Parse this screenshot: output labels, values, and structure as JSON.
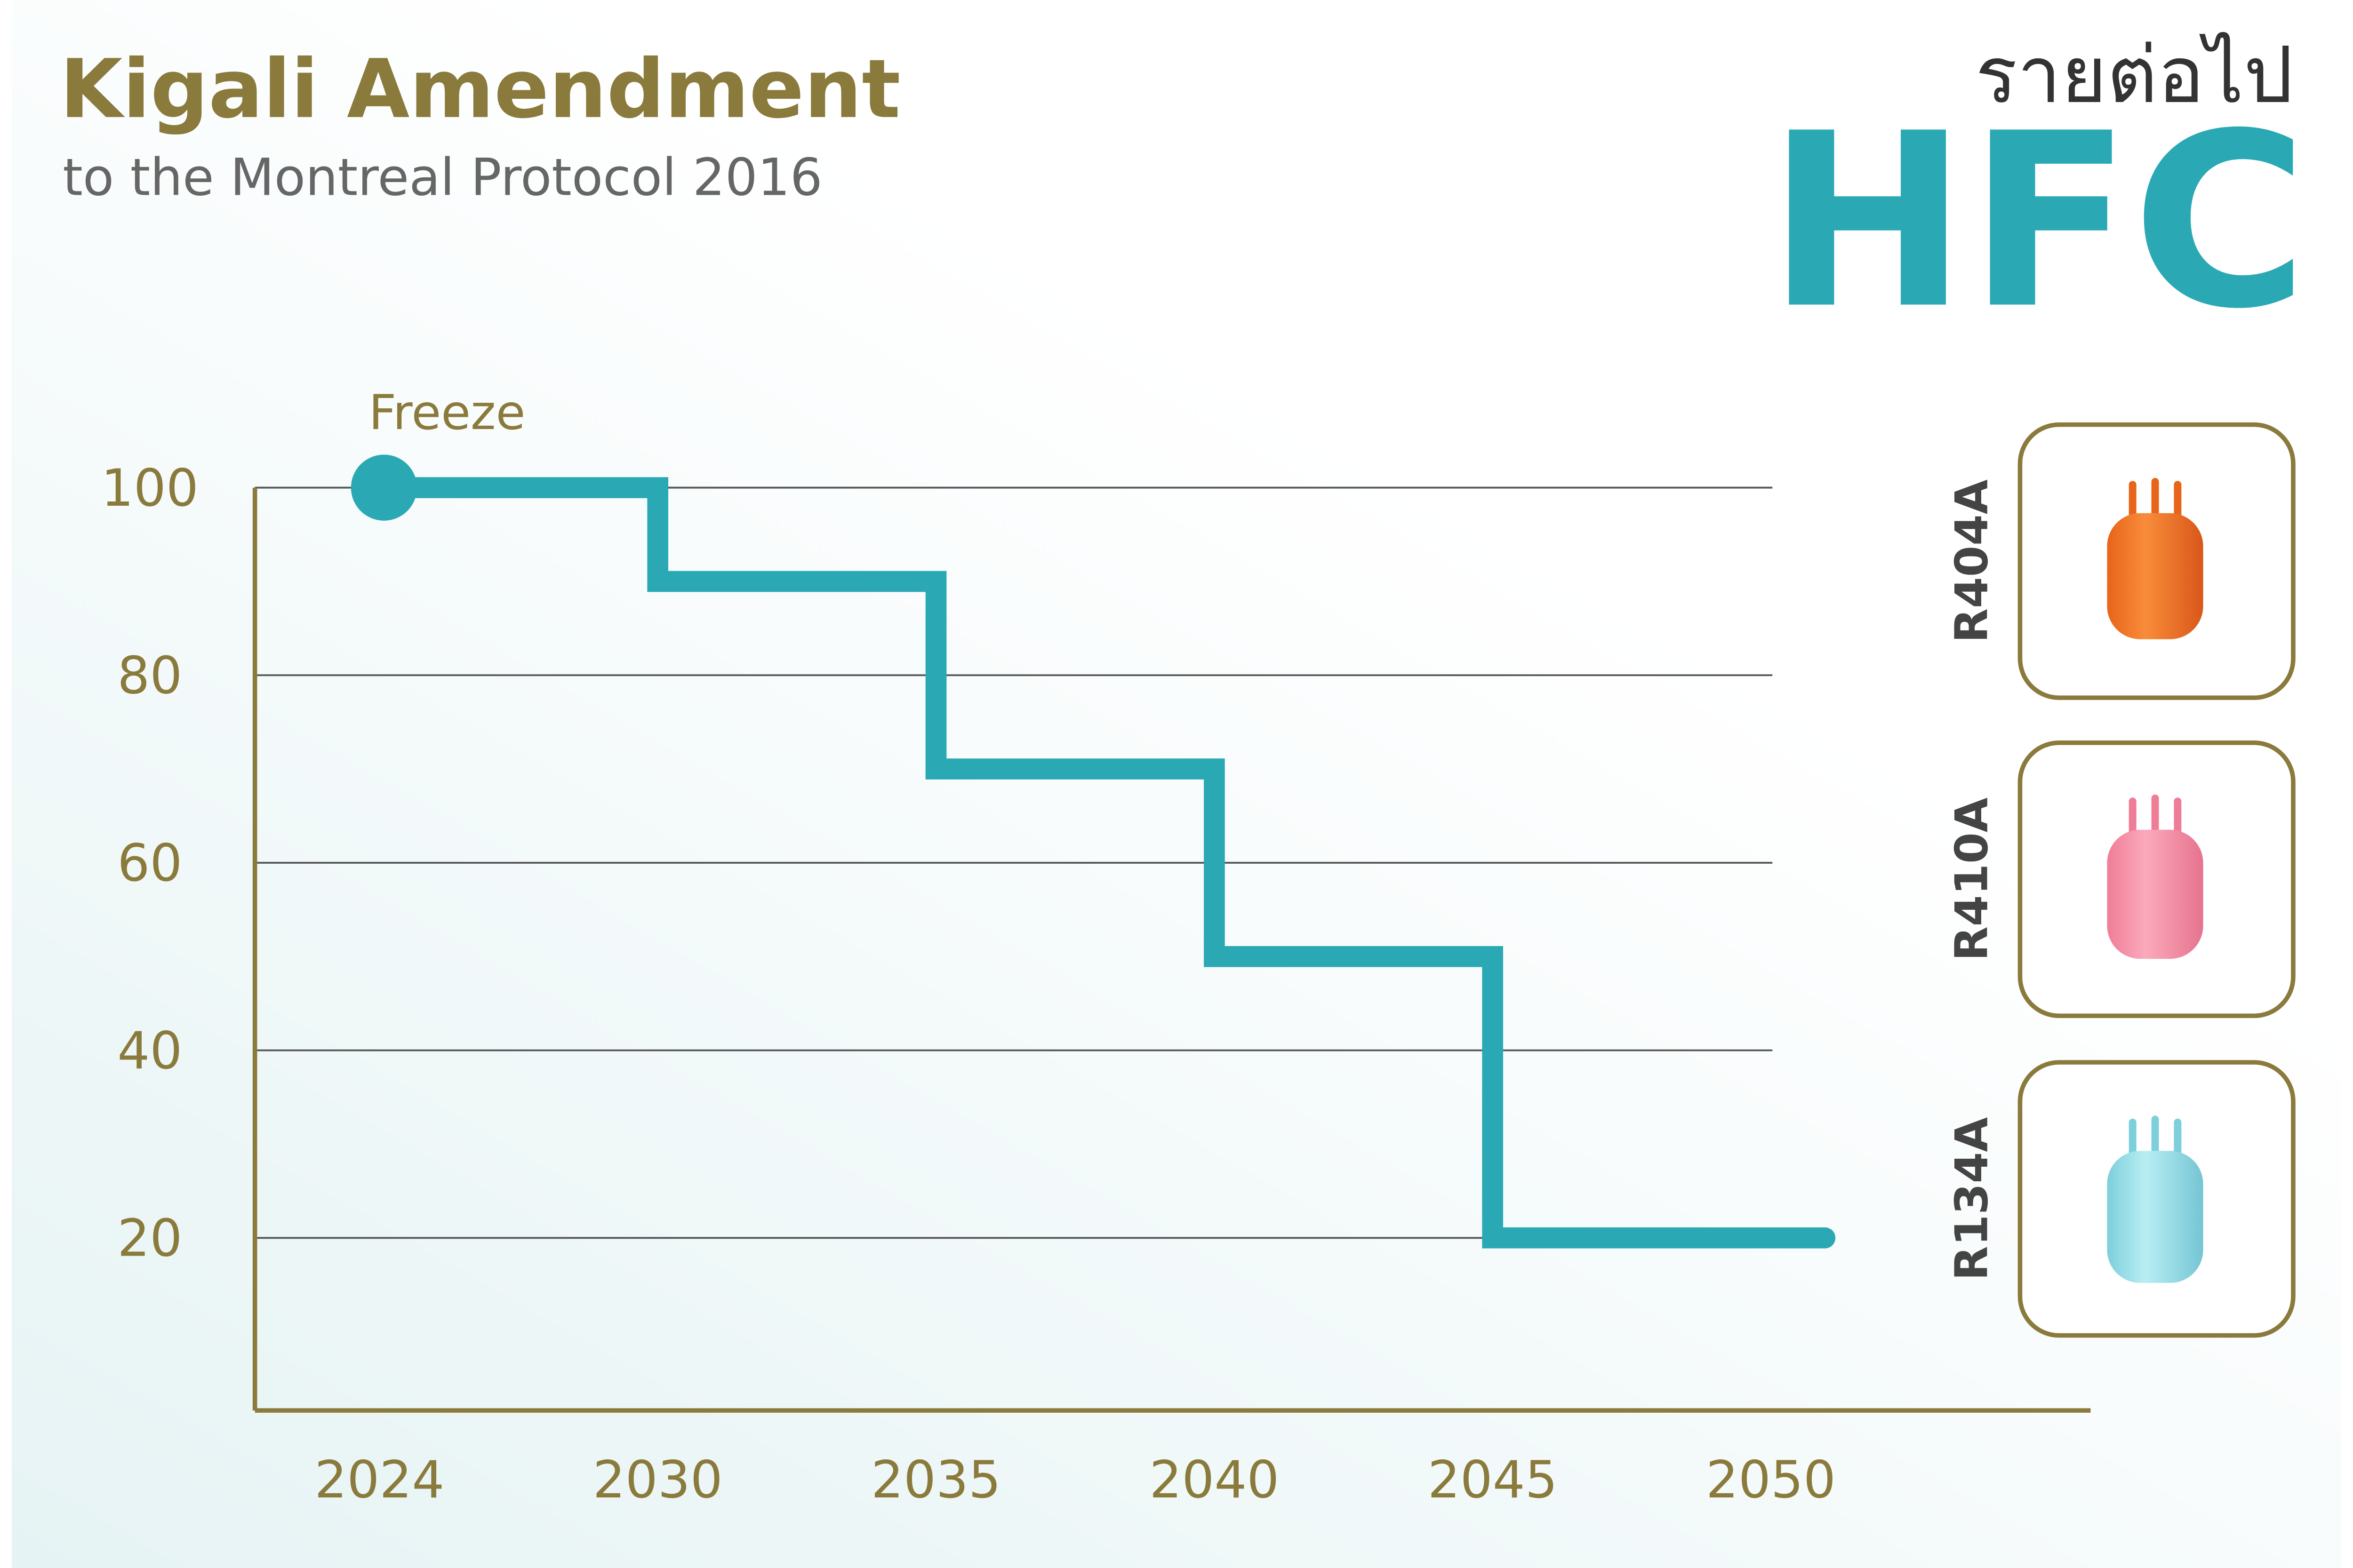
{
  "header": {
    "title": "Kigali Amendment",
    "subtitle": "to the Montreal Protocol 2016",
    "tag": "รายต่อไป",
    "heading": "HFC"
  },
  "refrigerants": [
    "R404A",
    "R410A",
    "R134A"
  ],
  "chart_data": {
    "type": "step",
    "categories": [
      "2024",
      "2030",
      "2035",
      "2040",
      "2045",
      "2050"
    ],
    "values": [
      100,
      90,
      70,
      50,
      20,
      20
    ],
    "color": "#2aa9b4",
    "annotation": "Freeze",
    "ylim": [
      0,
      100
    ],
    "yticks": [
      20,
      40,
      60,
      80,
      100
    ],
    "grid": true
  }
}
